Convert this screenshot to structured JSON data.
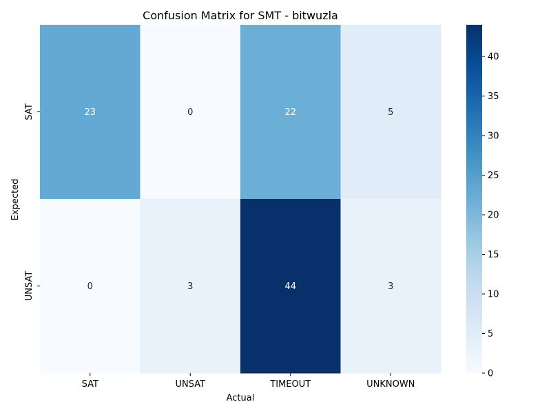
{
  "chart_data": {
    "type": "heatmap",
    "title": "Confusion Matrix for SMT - bitwuzla",
    "xlabel": "Actual",
    "ylabel": "Expected",
    "x_categories": [
      "SAT",
      "UNSAT",
      "TIMEOUT",
      "UNKNOWN"
    ],
    "y_categories": [
      "SAT",
      "UNSAT"
    ],
    "values": [
      [
        23,
        0,
        22,
        5
      ],
      [
        0,
        3,
        44,
        3
      ]
    ],
    "colormap": "Blues",
    "colorbar": {
      "min": 0,
      "max": 44,
      "ticks": [
        0,
        5,
        10,
        15,
        20,
        25,
        30,
        35,
        40
      ]
    },
    "annotations": true,
    "grid": false
  }
}
